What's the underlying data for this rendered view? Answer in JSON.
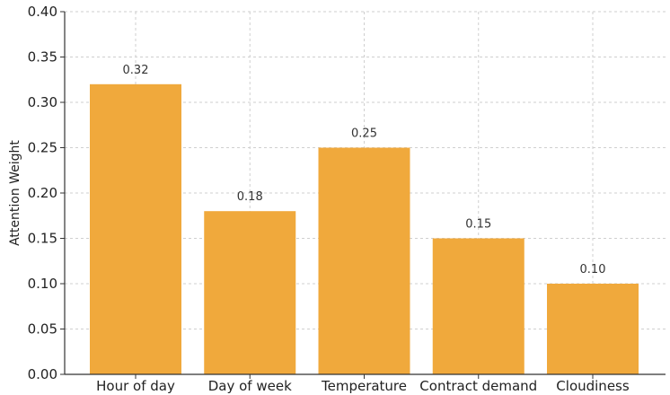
{
  "chart_data": {
    "type": "bar",
    "title": "",
    "xlabel": "",
    "ylabel": "Attention Weight",
    "categories": [
      "Hour of day",
      "Day of week",
      "Temperature",
      "Contract demand",
      "Cloudiness"
    ],
    "values": [
      0.32,
      0.18,
      0.25,
      0.15,
      0.1
    ],
    "data_labels": [
      "0.32",
      "0.18",
      "0.25",
      "0.15",
      "0.10"
    ],
    "ylim": [
      0,
      0.4
    ],
    "yticks": [
      0.0,
      0.05,
      0.1,
      0.15,
      0.2,
      0.25,
      0.3,
      0.35,
      0.4
    ],
    "ytick_labels": [
      "0.00",
      "0.05",
      "0.10",
      "0.15",
      "0.20",
      "0.25",
      "0.30",
      "0.35",
      "0.40"
    ],
    "grid": true,
    "legend": "none",
    "colors": {
      "bar": "#F0A93C",
      "grid": "#cfcfcf",
      "axis": "#333333"
    }
  }
}
